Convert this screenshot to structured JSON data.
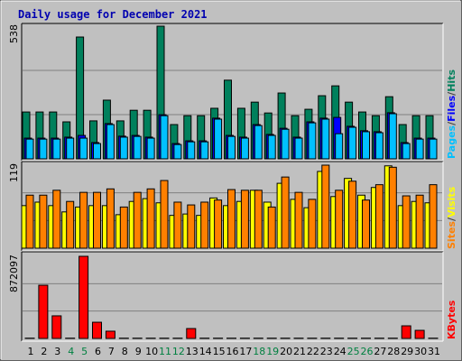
{
  "title": "Daily usage for December 2021",
  "chart_data": [
    {
      "type": "bar",
      "ylim": [
        0,
        538
      ],
      "yticks": [
        538
      ],
      "legend_separator": "/",
      "series": [
        {
          "name": "Hits",
          "color": "#00805c",
          "values": [
            190,
            190,
            190,
            150,
            494,
            154,
            238,
            154,
            197,
            197,
            538,
            139,
            175,
            175,
            205,
            319,
            205,
            230,
            186,
            267,
            175,
            201,
            256,
            296,
            230,
            190,
            175,
            252,
            139,
            175,
            175
          ]
        },
        {
          "name": "Files",
          "color": "#0000ff",
          "values": [
            84,
            84,
            84,
            88,
            95,
            66,
            143,
            92,
            95,
            88,
            179,
            62,
            73,
            73,
            165,
            95,
            88,
            139,
            99,
            124,
            88,
            150,
            165,
            168,
            132,
            114,
            110,
            187,
            66,
            84,
            84
          ]
        },
        {
          "name": "Pages",
          "color": "#00c0ff",
          "values": [
            80,
            80,
            80,
            84,
            84,
            62,
            139,
            88,
            91,
            84,
            175,
            58,
            69,
            69,
            161,
            91,
            84,
            135,
            95,
            120,
            84,
            146,
            161,
            102,
            128,
            110,
            106,
            183,
            62,
            80,
            80
          ]
        }
      ]
    },
    {
      "type": "bar",
      "ylim": [
        0,
        119
      ],
      "yticks": [
        119
      ],
      "legend_separator": "/",
      "series": [
        {
          "name": "Visits",
          "color": "#ffff00",
          "values": [
            61,
            66,
            61,
            52,
            59,
            61,
            61,
            48,
            67,
            71,
            65,
            47,
            49,
            47,
            72,
            61,
            67,
            83,
            66,
            93,
            70,
            58,
            110,
            74,
            100,
            76,
            87,
            118,
            61,
            67,
            65
          ]
        },
        {
          "name": "Sites",
          "color": "#ff8000",
          "values": [
            76,
            76,
            83,
            67,
            80,
            80,
            85,
            59,
            80,
            85,
            97,
            66,
            62,
            66,
            69,
            84,
            83,
            83,
            59,
            102,
            80,
            70,
            119,
            83,
            96,
            69,
            91,
            116,
            75,
            76,
            91
          ]
        }
      ]
    },
    {
      "type": "bar",
      "ylim": [
        0,
        872097
      ],
      "yticks": [
        872097
      ],
      "categories": [
        "1",
        "2",
        "3",
        "4",
        "5",
        "6",
        "7",
        "8",
        "9",
        "10",
        "11",
        "12",
        "13",
        "14",
        "15",
        "16",
        "17",
        "18",
        "19",
        "20",
        "21",
        "22",
        "23",
        "24",
        "25",
        "26",
        "27",
        "28",
        "29",
        "30",
        "31"
      ],
      "label_colors": [
        "#000000",
        "#000000",
        "#000000",
        "#008040",
        "#008040",
        "#000000",
        "#000000",
        "#000000",
        "#000000",
        "#000000",
        "#008040",
        "#008040",
        "#000000",
        "#000000",
        "#000000",
        "#000000",
        "#000000",
        "#008040",
        "#008040",
        "#000000",
        "#000000",
        "#000000",
        "#000000",
        "#000000",
        "#008040",
        "#008040",
        "#000000",
        "#000000",
        "#000000",
        "#000000",
        "#000000"
      ],
      "series": [
        {
          "name": "KBytes",
          "color": "#ff0000",
          "values": [
            3000,
            565000,
            240000,
            3000,
            872097,
            172000,
            77000,
            3000,
            3000,
            3000,
            3000,
            3000,
            105000,
            3000,
            3000,
            3000,
            3000,
            3000,
            3000,
            3000,
            3000,
            3000,
            3000,
            3000,
            3000,
            3000,
            3000,
            3000,
            134000,
            86000,
            3000
          ]
        }
      ]
    }
  ]
}
